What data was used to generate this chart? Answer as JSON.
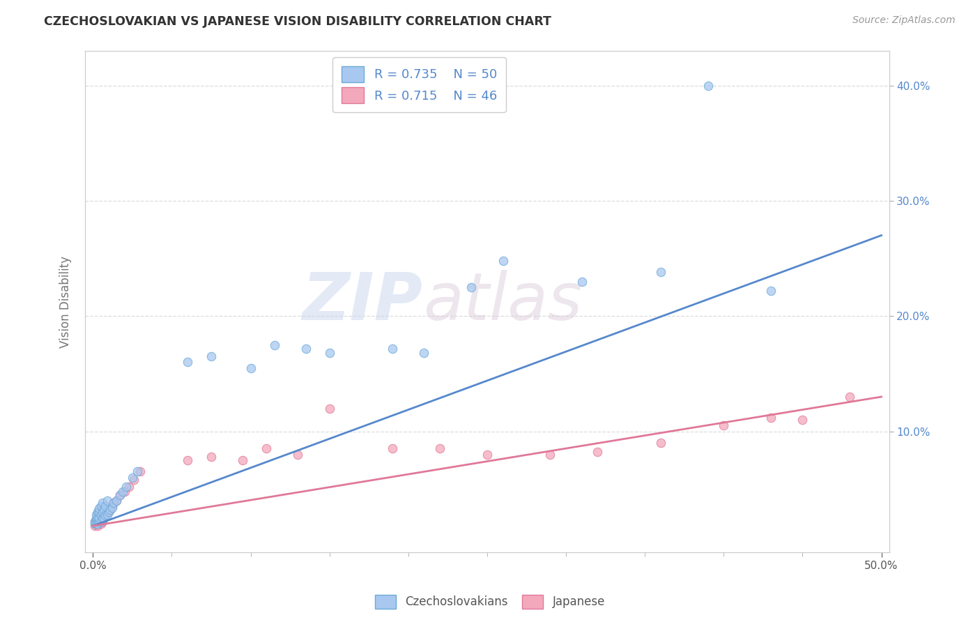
{
  "title": "CZECHOSLOVAKIAN VS JAPANESE VISION DISABILITY CORRELATION CHART",
  "source": "Source: ZipAtlas.com",
  "ylabel": "Vision Disability",
  "xlim": [
    -0.005,
    0.505
  ],
  "ylim": [
    -0.005,
    0.43
  ],
  "xtick_major": [
    0.0,
    0.5
  ],
  "xtick_major_labels": [
    "0.0%",
    "50.0%"
  ],
  "xtick_minor": [
    0.05,
    0.1,
    0.15,
    0.2,
    0.25,
    0.3,
    0.35,
    0.4,
    0.45
  ],
  "ytick_positions": [
    0.1,
    0.2,
    0.3,
    0.4
  ],
  "ytick_labels": [
    "10.0%",
    "20.0%",
    "30.0%",
    "40.0%"
  ],
  "czech_color": "#a8c8f0",
  "japanese_color": "#f4a8bc",
  "czech_edge_color": "#6baad8",
  "japanese_edge_color": "#e07898",
  "czech_line_color": "#5588cc",
  "japanese_line_color": "#e07898",
  "legend_R_czech": "0.735",
  "legend_N_czech": "50",
  "legend_R_japanese": "0.715",
  "legend_N_japanese": "46",
  "watermark_zip": "ZIP",
  "watermark_atlas": "atlas",
  "background_color": "#ffffff",
  "grid_color": "#dddddd",
  "blue_label_color": "#5588cc",
  "czech_x": [
    0.001,
    0.001,
    0.002,
    0.002,
    0.002,
    0.002,
    0.003,
    0.003,
    0.003,
    0.003,
    0.004,
    0.004,
    0.004,
    0.004,
    0.005,
    0.005,
    0.005,
    0.006,
    0.006,
    0.006,
    0.007,
    0.007,
    0.008,
    0.008,
    0.009,
    0.009,
    0.01,
    0.011,
    0.012,
    0.013,
    0.015,
    0.017,
    0.019,
    0.021,
    0.025,
    0.028,
    0.06,
    0.075,
    0.1,
    0.115,
    0.135,
    0.15,
    0.19,
    0.21,
    0.24,
    0.26,
    0.31,
    0.36,
    0.39,
    0.43
  ],
  "czech_y": [
    0.02,
    0.022,
    0.02,
    0.022,
    0.025,
    0.028,
    0.02,
    0.023,
    0.025,
    0.03,
    0.022,
    0.025,
    0.03,
    0.033,
    0.022,
    0.027,
    0.035,
    0.025,
    0.03,
    0.038,
    0.025,
    0.032,
    0.027,
    0.035,
    0.028,
    0.04,
    0.03,
    0.032,
    0.034,
    0.038,
    0.04,
    0.045,
    0.048,
    0.052,
    0.06,
    0.065,
    0.16,
    0.165,
    0.155,
    0.175,
    0.172,
    0.168,
    0.172,
    0.168,
    0.225,
    0.248,
    0.23,
    0.238,
    0.4,
    0.222
  ],
  "japanese_x": [
    0.001,
    0.001,
    0.002,
    0.002,
    0.003,
    0.003,
    0.003,
    0.004,
    0.004,
    0.004,
    0.005,
    0.005,
    0.005,
    0.006,
    0.006,
    0.007,
    0.007,
    0.008,
    0.008,
    0.009,
    0.01,
    0.011,
    0.012,
    0.013,
    0.015,
    0.017,
    0.02,
    0.023,
    0.026,
    0.03,
    0.06,
    0.075,
    0.095,
    0.11,
    0.13,
    0.15,
    0.19,
    0.22,
    0.25,
    0.29,
    0.32,
    0.36,
    0.4,
    0.43,
    0.45,
    0.48
  ],
  "japanese_y": [
    0.018,
    0.022,
    0.02,
    0.024,
    0.018,
    0.022,
    0.028,
    0.02,
    0.025,
    0.03,
    0.02,
    0.025,
    0.032,
    0.022,
    0.03,
    0.025,
    0.033,
    0.028,
    0.035,
    0.03,
    0.03,
    0.032,
    0.035,
    0.038,
    0.04,
    0.045,
    0.048,
    0.052,
    0.058,
    0.065,
    0.075,
    0.078,
    0.075,
    0.085,
    0.08,
    0.12,
    0.085,
    0.085,
    0.08,
    0.08,
    0.082,
    0.09,
    0.105,
    0.112,
    0.11,
    0.13
  ],
  "czech_line_x": [
    0.0,
    0.5
  ],
  "czech_line_y": [
    0.018,
    0.27
  ],
  "japanese_line_x": [
    0.0,
    0.5
  ],
  "japanese_line_y": [
    0.018,
    0.13
  ]
}
